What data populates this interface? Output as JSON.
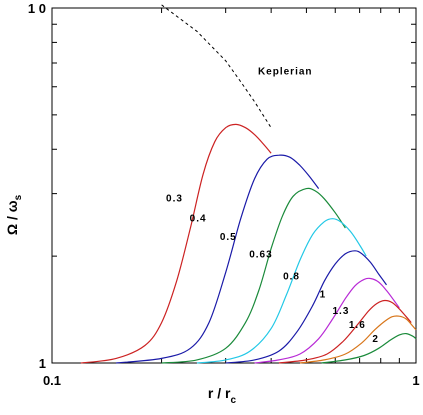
{
  "chart_data": {
    "type": "line",
    "title": "",
    "xlabel": {
      "main": "r / r",
      "sub": "c"
    },
    "ylabel": {
      "main": "Ω / ω",
      "sub": "s"
    },
    "xscale": "log",
    "yscale": "log",
    "xlim": [
      0.1,
      1.0
    ],
    "ylim": [
      1,
      10
    ],
    "x_ticks": [
      {
        "value": 0.1,
        "label": "0.1"
      },
      {
        "value": 1,
        "label": "1"
      }
    ],
    "y_ticks": [
      {
        "value": 1,
        "label": "1"
      },
      {
        "value": 10,
        "label": "1 0"
      }
    ],
    "grid": false,
    "legend": "none",
    "series": [
      {
        "name": "0.3",
        "color": "#cc2222",
        "label_pos": [
          0.217,
          2.85
        ],
        "points": [
          [
            0.12,
            1.0
          ],
          [
            0.15,
            1.03
          ],
          [
            0.18,
            1.12
          ],
          [
            0.2,
            1.3
          ],
          [
            0.22,
            1.7
          ],
          [
            0.24,
            2.4
          ],
          [
            0.26,
            3.4
          ],
          [
            0.28,
            4.2
          ],
          [
            0.3,
            4.6
          ],
          [
            0.32,
            4.7
          ],
          [
            0.34,
            4.6
          ],
          [
            0.36,
            4.4
          ],
          [
            0.38,
            4.15
          ],
          [
            0.4,
            3.9
          ]
        ]
      },
      {
        "name": "0.4",
        "color": "#1a1aa8",
        "label_pos": [
          0.252,
          2.5
        ],
        "points": [
          [
            0.15,
            1.0
          ],
          [
            0.2,
            1.03
          ],
          [
            0.24,
            1.1
          ],
          [
            0.27,
            1.3
          ],
          [
            0.3,
            1.8
          ],
          [
            0.33,
            2.55
          ],
          [
            0.36,
            3.3
          ],
          [
            0.39,
            3.75
          ],
          [
            0.42,
            3.85
          ],
          [
            0.45,
            3.8
          ],
          [
            0.48,
            3.6
          ],
          [
            0.51,
            3.35
          ],
          [
            0.54,
            3.1
          ]
        ]
      },
      {
        "name": "0.5",
        "color": "#1a8a3a",
        "label_pos": [
          0.305,
          2.22
        ],
        "points": [
          [
            0.2,
            1.0
          ],
          [
            0.25,
            1.02
          ],
          [
            0.3,
            1.1
          ],
          [
            0.34,
            1.3
          ],
          [
            0.37,
            1.6
          ],
          [
            0.4,
            2.1
          ],
          [
            0.43,
            2.6
          ],
          [
            0.46,
            2.95
          ],
          [
            0.5,
            3.1
          ],
          [
            0.53,
            3.05
          ],
          [
            0.56,
            2.9
          ],
          [
            0.6,
            2.65
          ],
          [
            0.64,
            2.4
          ]
        ]
      },
      {
        "name": "0.63",
        "color": "#22c8e6",
        "label_pos": [
          0.375,
          1.98
        ],
        "points": [
          [
            0.25,
            1.0
          ],
          [
            0.3,
            1.02
          ],
          [
            0.35,
            1.08
          ],
          [
            0.4,
            1.25
          ],
          [
            0.44,
            1.55
          ],
          [
            0.48,
            1.95
          ],
          [
            0.52,
            2.3
          ],
          [
            0.56,
            2.5
          ],
          [
            0.59,
            2.55
          ],
          [
            0.62,
            2.5
          ],
          [
            0.66,
            2.35
          ],
          [
            0.7,
            2.15
          ],
          [
            0.73,
            2.0
          ]
        ]
      },
      {
        "name": "0.8",
        "color": "#1a1aa8",
        "label_pos": [
          0.455,
          1.72
        ],
        "points": [
          [
            0.3,
            1.0
          ],
          [
            0.36,
            1.02
          ],
          [
            0.42,
            1.08
          ],
          [
            0.47,
            1.22
          ],
          [
            0.52,
            1.45
          ],
          [
            0.56,
            1.7
          ],
          [
            0.6,
            1.9
          ],
          [
            0.64,
            2.03
          ],
          [
            0.68,
            2.07
          ],
          [
            0.71,
            2.03
          ],
          [
            0.75,
            1.92
          ],
          [
            0.79,
            1.78
          ],
          [
            0.83,
            1.66
          ]
        ]
      },
      {
        "name": "1",
        "color": "#b82ad6",
        "label_pos": [
          0.555,
          1.53
        ],
        "points": [
          [
            0.36,
            1.0
          ],
          [
            0.42,
            1.02
          ],
          [
            0.48,
            1.06
          ],
          [
            0.54,
            1.17
          ],
          [
            0.59,
            1.33
          ],
          [
            0.64,
            1.52
          ],
          [
            0.68,
            1.65
          ],
          [
            0.72,
            1.72
          ],
          [
            0.75,
            1.73
          ],
          [
            0.79,
            1.69
          ],
          [
            0.83,
            1.6
          ],
          [
            0.87,
            1.5
          ],
          [
            0.9,
            1.43
          ]
        ]
      },
      {
        "name": "1.3",
        "color": "#cc2222",
        "label_pos": [
          0.622,
          1.375
        ],
        "points": [
          [
            0.42,
            1.0
          ],
          [
            0.5,
            1.02
          ],
          [
            0.57,
            1.06
          ],
          [
            0.63,
            1.15
          ],
          [
            0.69,
            1.28
          ],
          [
            0.74,
            1.4
          ],
          [
            0.78,
            1.47
          ],
          [
            0.82,
            1.5
          ],
          [
            0.86,
            1.48
          ],
          [
            0.9,
            1.42
          ],
          [
            0.94,
            1.35
          ],
          [
            0.97,
            1.3
          ]
        ]
      },
      {
        "name": "1.6",
        "color": "#d8761a",
        "label_pos": [
          0.69,
          1.255
        ],
        "points": [
          [
            0.48,
            1.0
          ],
          [
            0.56,
            1.02
          ],
          [
            0.64,
            1.06
          ],
          [
            0.71,
            1.14
          ],
          [
            0.77,
            1.24
          ],
          [
            0.82,
            1.31
          ],
          [
            0.86,
            1.35
          ],
          [
            0.9,
            1.355
          ],
          [
            0.94,
            1.33
          ],
          [
            0.98,
            1.27
          ],
          [
            1.0,
            1.24
          ]
        ]
      },
      {
        "name": "2",
        "color": "#1a8a3a",
        "label_pos": [
          0.775,
          1.145
        ],
        "points": [
          [
            0.55,
            1.0
          ],
          [
            0.64,
            1.02
          ],
          [
            0.72,
            1.05
          ],
          [
            0.79,
            1.1
          ],
          [
            0.85,
            1.16
          ],
          [
            0.9,
            1.2
          ],
          [
            0.94,
            1.21
          ],
          [
            0.98,
            1.19
          ],
          [
            1.0,
            1.17
          ]
        ]
      }
    ],
    "reference_line": {
      "name": "Keplerian",
      "color": "#000000",
      "style": "dashed",
      "label_pos": [
        0.368,
        6.5
      ],
      "points": [
        [
          0.2,
          10.2
        ],
        [
          0.25,
          8.6
        ],
        [
          0.3,
          7.1
        ],
        [
          0.33,
          6.2
        ],
        [
          0.36,
          5.45
        ],
        [
          0.4,
          4.6
        ]
      ]
    }
  }
}
